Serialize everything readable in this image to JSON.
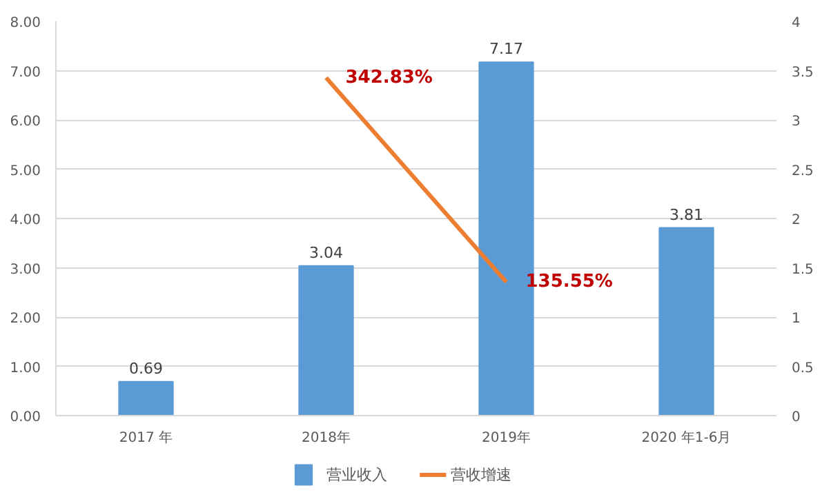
{
  "chart_data": {
    "type": "bar",
    "categories": [
      "2017 年",
      "2018年",
      "2019年",
      "2020 年1-6月"
    ],
    "series": [
      {
        "name": "营业收入",
        "color": "#5b9bd5",
        "values": [
          0.69,
          3.04,
          7.17,
          3.81
        ],
        "value_labels": [
          "0.69",
          "3.04",
          "7.17",
          "3.81"
        ]
      },
      {
        "name": "营收增速",
        "type": "line",
        "axis": "y2",
        "color": "#ed7d31",
        "values": [
          null,
          3.4283,
          1.3555,
          null
        ],
        "value_labels": [
          null,
          "342.83%",
          "135.55%",
          null
        ]
      }
    ],
    "ylim": [
      0,
      8
    ],
    "yticks": [
      {
        "value": 0,
        "label": "0.00"
      },
      {
        "value": 1,
        "label": "1.00"
      },
      {
        "value": 2,
        "label": "2.00"
      },
      {
        "value": 3,
        "label": "3.00"
      },
      {
        "value": 4,
        "label": "4.00"
      },
      {
        "value": 5,
        "label": "5.00"
      },
      {
        "value": 6,
        "label": "6.00"
      },
      {
        "value": 7,
        "label": "7.00"
      },
      {
        "value": 8,
        "label": "8.00"
      }
    ],
    "y2lim": [
      0,
      4
    ],
    "y2ticks": [
      0,
      0.5,
      1,
      1.5,
      2,
      2.5,
      3,
      3.5,
      4
    ],
    "grid": "y",
    "legend": "bottom",
    "marker": "none",
    "line_style": "solid"
  }
}
